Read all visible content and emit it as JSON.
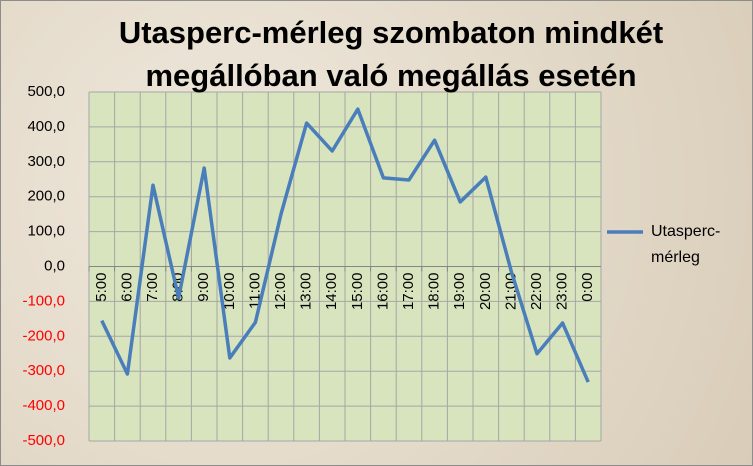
{
  "chart_data": {
    "type": "line",
    "title": "Utasperc-mérleg szombaton mindkét megállóban való megállás esetén",
    "categories": [
      "5:00",
      "6:00",
      "7:00",
      "8:00",
      "9:00",
      "10:00",
      "11:00",
      "12:00",
      "13:00",
      "14:00",
      "15:00",
      "16:00",
      "17:00",
      "18:00",
      "19:00",
      "20:00",
      "21:00",
      "22:00",
      "23:00",
      "0:00"
    ],
    "series": [
      {
        "name": "Utasperc-mérleg",
        "color": "#4a7ebb",
        "values": [
          -155,
          -308,
          233,
          -90,
          282,
          -262,
          -160,
          150,
          411,
          331,
          451,
          254,
          248,
          362,
          185,
          256,
          -15,
          -250,
          -162,
          -331
        ]
      }
    ],
    "ylim": [
      -500,
      500
    ],
    "yticks": [
      {
        "value": -500,
        "label": "-500,0"
      },
      {
        "value": -400,
        "label": "-400,0"
      },
      {
        "value": -300,
        "label": "-300,0"
      },
      {
        "value": -200,
        "label": "-200,0"
      },
      {
        "value": -100,
        "label": "-100,0"
      },
      {
        "value": 0,
        "label": "0,0"
      },
      {
        "value": 100,
        "label": "100,0"
      },
      {
        "value": 200,
        "label": "200,0"
      },
      {
        "value": 300,
        "label": "300,0"
      },
      {
        "value": 400,
        "label": "400,0"
      },
      {
        "value": 500,
        "label": "500,0"
      }
    ],
    "negative_tick_color": "#ff0000",
    "grid": true,
    "legend": "right"
  }
}
